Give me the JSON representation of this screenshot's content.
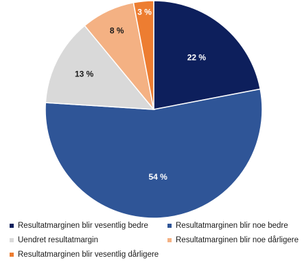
{
  "chart_data": {
    "type": "pie",
    "title": "",
    "categories": [
      "Resultatmarginen blir vesentlig bedre",
      "Resultatmarginen blir noe bedre",
      "Uendret resultatmargin",
      "Resultatmarginen blir noe dårligere",
      "Resultatmarginen blir vesentlig dårligere"
    ],
    "values": [
      22,
      54,
      13,
      8,
      3
    ],
    "value_labels": [
      "22 %",
      "54 %",
      "13 %",
      "8 %",
      "3 %"
    ],
    "colors": [
      "#0d1f5c",
      "#2f5597",
      "#d9d9d9",
      "#f4b183",
      "#ed7d31"
    ],
    "label_colors": [
      "#ffffff",
      "#ffffff",
      "#1a1a1a",
      "#1a1a1a",
      "#ffffff"
    ],
    "start_angle": "12 o'clock",
    "direction": "clockwise",
    "legend_position": "bottom"
  }
}
